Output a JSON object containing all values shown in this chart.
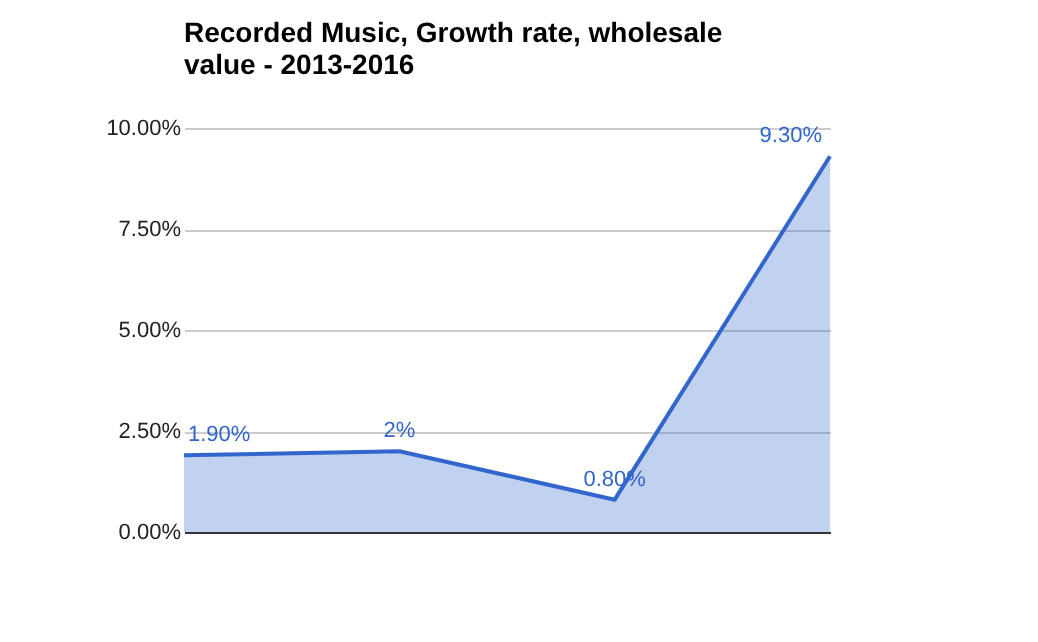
{
  "chart_data": {
    "type": "area",
    "title": "Recorded Music, Growth rate, wholesale value - 2013-2016",
    "categories": [
      null,
      null,
      null,
      null
    ],
    "series": [
      {
        "color": "#3366cc",
        "values": [
          1.9,
          2,
          0.8,
          9.3
        ],
        "value_labels": [
          "1.90%",
          "2%",
          "0.80%",
          "9.30%"
        ]
      }
    ],
    "ylim": [
      0,
      10
    ],
    "yticks": [
      {
        "value": 0,
        "label": "0.00%"
      },
      {
        "value": 2.5,
        "label": "2.50%"
      },
      {
        "value": 5,
        "label": "5.00%"
      },
      {
        "value": 7.5,
        "label": "7.50%"
      },
      {
        "value": 10,
        "label": "10.00%"
      }
    ],
    "grid": "y"
  }
}
